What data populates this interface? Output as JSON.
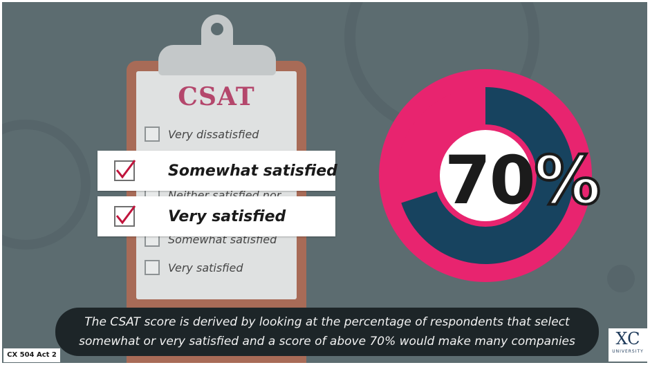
{
  "form": {
    "title": "CSAT",
    "options": [
      "Very dissatisfied",
      "Neither satisfied nor",
      "Somewhat satisfied",
      "Very satisfied"
    ]
  },
  "selected": [
    {
      "label": "Somewhat satisfied",
      "checked": true
    },
    {
      "label": "Very satisfied",
      "checked": true
    }
  ],
  "gauge": {
    "value_text": "70",
    "percent_sign": "%",
    "value": 70,
    "colors": {
      "filled": "#17435f",
      "remaining": "#e8246f"
    }
  },
  "caption": {
    "line1": "The CSAT score is derived by looking at the percentage of respondents that select",
    "line2": "somewhat or very satisfied and a score of above 70% would make many companies"
  },
  "logo": {
    "mark": "XC",
    "word": "UNIVERSITY"
  },
  "tag": "CX 504 Act 2",
  "colors": {
    "background": "#5c6c70",
    "accent": "#e8246f",
    "dark": "#1d2528"
  }
}
